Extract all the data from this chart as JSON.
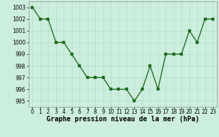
{
  "x": [
    0,
    1,
    2,
    3,
    4,
    5,
    6,
    7,
    8,
    9,
    10,
    11,
    12,
    13,
    14,
    15,
    16,
    17,
    18,
    19,
    20,
    21,
    22,
    23
  ],
  "y": [
    1003,
    1002,
    1002,
    1000,
    1000,
    999,
    998,
    997,
    997,
    997,
    996,
    996,
    996,
    995,
    996,
    998,
    996,
    999,
    999,
    999,
    1001,
    1000,
    1002,
    1002
  ],
  "line_color": "#1a6b1a",
  "marker_color": "#1a6b1a",
  "bg_color": "#cceedd",
  "grid_color": "#bbddcc",
  "xlabel": "Graphe pression niveau de la mer (hPa)",
  "ylim": [
    994.5,
    1003.5
  ],
  "yticks": [
    995,
    996,
    997,
    998,
    999,
    1000,
    1001,
    1002,
    1003
  ],
  "xticks": [
    0,
    1,
    2,
    3,
    4,
    5,
    6,
    7,
    8,
    9,
    10,
    11,
    12,
    13,
    14,
    15,
    16,
    17,
    18,
    19,
    20,
    21,
    22,
    23
  ],
  "tick_fontsize": 5.5,
  "xlabel_fontsize": 7,
  "marker_size": 2.5,
  "line_width": 1.0
}
